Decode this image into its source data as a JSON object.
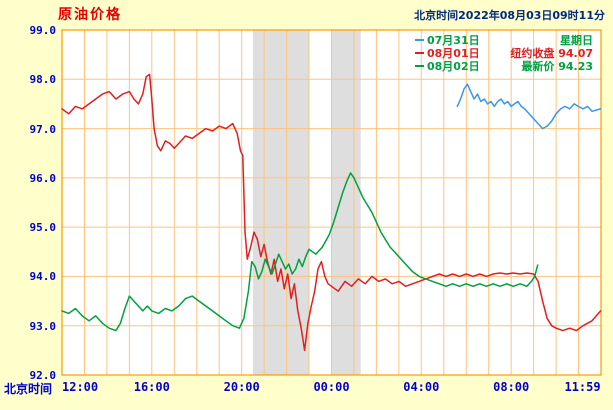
{
  "page": {
    "title": "原油价格",
    "timestamp": "北京时间2022年08月03日09时11分",
    "x_axis_caption": "北京时间"
  },
  "colors": {
    "background": "#FFFFCC",
    "plot_bg": "#FFFFFF",
    "grid": "#FFC37E",
    "border": "#FF9900",
    "band": "#DEDEDE",
    "axis_text": "#0000CC",
    "title_text": "#E60000",
    "timestamp_text": "#002A80",
    "line_blue": "#3A97E8",
    "line_red": "#E02020",
    "line_green": "#00A040"
  },
  "legend": {
    "rows": [
      {
        "date": "07月31日",
        "note": "星期日",
        "line_color": "#3A97E8",
        "date_color": "#00A040",
        "note_color": "#00A040"
      },
      {
        "date": "08月01日",
        "note": "纽约收盘 94.07",
        "line_color": "#E02020",
        "date_color": "#E02020",
        "note_color": "#E02020"
      },
      {
        "date": "08月02日",
        "note": "最新价 94.23",
        "line_color": "#00A040",
        "date_color": "#00A040",
        "note_color": "#00A040"
      }
    ]
  },
  "chart_data": {
    "type": "line",
    "title": "原油价格",
    "xlabel": "北京时间",
    "ylabel": "",
    "ylim": [
      92.0,
      99.0
    ],
    "x_hours_span": 24,
    "grid": true,
    "legend_position": "top-right",
    "y_ticks": [
      {
        "label": "99.0",
        "value": 99.0
      },
      {
        "label": "98.0",
        "value": 98.0
      },
      {
        "label": "97.0",
        "value": 97.0
      },
      {
        "label": "96.0",
        "value": 96.0
      },
      {
        "label": "95.0",
        "value": 95.0
      },
      {
        "label": "94.0",
        "value": 94.0
      },
      {
        "label": "93.0",
        "value": 93.0
      },
      {
        "label": "92.0",
        "value": 92.0
      }
    ],
    "x_ticks": [
      {
        "label": "12:00",
        "t": 0,
        "align": "left"
      },
      {
        "label": "16:00",
        "t": 4,
        "align": "center"
      },
      {
        "label": "20:00",
        "t": 8,
        "align": "center"
      },
      {
        "label": "00:00",
        "t": 12,
        "align": "center"
      },
      {
        "label": "04:00",
        "t": 16,
        "align": "center"
      },
      {
        "label": "08:00",
        "t": 20,
        "align": "center"
      },
      {
        "label": "11:59",
        "t": 23.98,
        "align": "right"
      }
    ],
    "shaded_bands": [
      {
        "t0": 8.5,
        "t1": 11.0
      },
      {
        "t0": 12.0,
        "t1": 13.3
      }
    ],
    "series": [
      {
        "name": "07月31日",
        "color": "#3A97E8",
        "points": [
          [
            17.6,
            97.45
          ],
          [
            17.75,
            97.6
          ],
          [
            17.9,
            97.8
          ],
          [
            18.05,
            97.9
          ],
          [
            18.2,
            97.75
          ],
          [
            18.35,
            97.6
          ],
          [
            18.5,
            97.7
          ],
          [
            18.65,
            97.55
          ],
          [
            18.8,
            97.6
          ],
          [
            18.95,
            97.5
          ],
          [
            19.1,
            97.55
          ],
          [
            19.25,
            97.45
          ],
          [
            19.4,
            97.55
          ],
          [
            19.55,
            97.6
          ],
          [
            19.7,
            97.5
          ],
          [
            19.85,
            97.55
          ],
          [
            20.0,
            97.45
          ],
          [
            20.15,
            97.5
          ],
          [
            20.3,
            97.55
          ],
          [
            20.45,
            97.45
          ],
          [
            20.6,
            97.4
          ],
          [
            20.8,
            97.3
          ],
          [
            21.0,
            97.2
          ],
          [
            21.2,
            97.1
          ],
          [
            21.4,
            97.0
          ],
          [
            21.6,
            97.05
          ],
          [
            21.8,
            97.15
          ],
          [
            22.0,
            97.3
          ],
          [
            22.2,
            97.4
          ],
          [
            22.4,
            97.45
          ],
          [
            22.6,
            97.4
          ],
          [
            22.8,
            97.5
          ],
          [
            23.0,
            97.45
          ],
          [
            23.2,
            97.4
          ],
          [
            23.4,
            97.45
          ],
          [
            23.6,
            97.35
          ],
          [
            23.98,
            97.4
          ]
        ]
      },
      {
        "name": "08月01日",
        "color": "#E02020",
        "points": [
          [
            0,
            97.4
          ],
          [
            0.3,
            97.3
          ],
          [
            0.6,
            97.45
          ],
          [
            0.9,
            97.4
          ],
          [
            1.2,
            97.5
          ],
          [
            1.5,
            97.6
          ],
          [
            1.8,
            97.7
          ],
          [
            2.1,
            97.75
          ],
          [
            2.4,
            97.6
          ],
          [
            2.7,
            97.7
          ],
          [
            3.0,
            97.75
          ],
          [
            3.2,
            97.6
          ],
          [
            3.4,
            97.5
          ],
          [
            3.6,
            97.7
          ],
          [
            3.75,
            98.05
          ],
          [
            3.9,
            98.1
          ],
          [
            4.0,
            97.6
          ],
          [
            4.1,
            97.0
          ],
          [
            4.25,
            96.65
          ],
          [
            4.4,
            96.55
          ],
          [
            4.6,
            96.75
          ],
          [
            4.8,
            96.7
          ],
          [
            5.0,
            96.6
          ],
          [
            5.2,
            96.7
          ],
          [
            5.5,
            96.85
          ],
          [
            5.8,
            96.8
          ],
          [
            6.1,
            96.9
          ],
          [
            6.4,
            97.0
          ],
          [
            6.7,
            96.95
          ],
          [
            7.0,
            97.05
          ],
          [
            7.3,
            97.0
          ],
          [
            7.6,
            97.1
          ],
          [
            7.8,
            96.9
          ],
          [
            7.95,
            96.55
          ],
          [
            8.05,
            96.45
          ],
          [
            8.15,
            94.9
          ],
          [
            8.25,
            94.35
          ],
          [
            8.4,
            94.6
          ],
          [
            8.55,
            94.9
          ],
          [
            8.7,
            94.75
          ],
          [
            8.85,
            94.4
          ],
          [
            9.0,
            94.65
          ],
          [
            9.15,
            94.3
          ],
          [
            9.3,
            94.05
          ],
          [
            9.45,
            94.35
          ],
          [
            9.6,
            93.9
          ],
          [
            9.75,
            94.15
          ],
          [
            9.9,
            93.75
          ],
          [
            10.05,
            94.05
          ],
          [
            10.2,
            93.55
          ],
          [
            10.35,
            93.85
          ],
          [
            10.5,
            93.3
          ],
          [
            10.65,
            92.95
          ],
          [
            10.8,
            92.5
          ],
          [
            10.95,
            93.05
          ],
          [
            11.1,
            93.4
          ],
          [
            11.25,
            93.7
          ],
          [
            11.4,
            94.15
          ],
          [
            11.55,
            94.3
          ],
          [
            11.7,
            94.0
          ],
          [
            11.85,
            93.85
          ],
          [
            12.0,
            93.8
          ],
          [
            12.3,
            93.7
          ],
          [
            12.6,
            93.9
          ],
          [
            12.9,
            93.8
          ],
          [
            13.2,
            93.95
          ],
          [
            13.5,
            93.85
          ],
          [
            13.8,
            94.0
          ],
          [
            14.1,
            93.9
          ],
          [
            14.4,
            93.95
          ],
          [
            14.7,
            93.85
          ],
          [
            15.0,
            93.9
          ],
          [
            15.3,
            93.8
          ],
          [
            15.6,
            93.85
          ],
          [
            15.9,
            93.9
          ],
          [
            16.2,
            93.95
          ],
          [
            16.5,
            94.0
          ],
          [
            16.8,
            94.05
          ],
          [
            17.1,
            94.0
          ],
          [
            17.4,
            94.05
          ],
          [
            17.7,
            94.0
          ],
          [
            18.0,
            94.05
          ],
          [
            18.3,
            94.0
          ],
          [
            18.6,
            94.05
          ],
          [
            18.9,
            94.0
          ],
          [
            19.2,
            94.05
          ],
          [
            19.5,
            94.07
          ],
          [
            19.8,
            94.05
          ],
          [
            20.1,
            94.07
          ],
          [
            20.4,
            94.05
          ],
          [
            20.7,
            94.07
          ],
          [
            21.0,
            94.05
          ],
          [
            21.2,
            93.9
          ],
          [
            21.4,
            93.5
          ],
          [
            21.6,
            93.15
          ],
          [
            21.8,
            93.0
          ],
          [
            22.0,
            92.95
          ],
          [
            22.3,
            92.9
          ],
          [
            22.6,
            92.95
          ],
          [
            22.9,
            92.9
          ],
          [
            23.2,
            93.0
          ],
          [
            23.6,
            93.1
          ],
          [
            23.98,
            93.3
          ]
        ]
      },
      {
        "name": "08月02日",
        "color": "#00A040",
        "points": [
          [
            0,
            93.3
          ],
          [
            0.3,
            93.25
          ],
          [
            0.6,
            93.35
          ],
          [
            0.9,
            93.2
          ],
          [
            1.2,
            93.1
          ],
          [
            1.5,
            93.2
          ],
          [
            1.8,
            93.05
          ],
          [
            2.1,
            92.95
          ],
          [
            2.4,
            92.9
          ],
          [
            2.6,
            93.05
          ],
          [
            2.8,
            93.35
          ],
          [
            3.0,
            93.6
          ],
          [
            3.2,
            93.5
          ],
          [
            3.4,
            93.4
          ],
          [
            3.6,
            93.3
          ],
          [
            3.8,
            93.4
          ],
          [
            4.0,
            93.3
          ],
          [
            4.3,
            93.25
          ],
          [
            4.6,
            93.35
          ],
          [
            4.9,
            93.3
          ],
          [
            5.2,
            93.4
          ],
          [
            5.5,
            93.55
          ],
          [
            5.8,
            93.6
          ],
          [
            6.1,
            93.5
          ],
          [
            6.4,
            93.4
          ],
          [
            6.7,
            93.3
          ],
          [
            7.0,
            93.2
          ],
          [
            7.3,
            93.1
          ],
          [
            7.6,
            93.0
          ],
          [
            7.9,
            92.95
          ],
          [
            8.1,
            93.15
          ],
          [
            8.3,
            93.7
          ],
          [
            8.45,
            94.3
          ],
          [
            8.6,
            94.2
          ],
          [
            8.75,
            93.95
          ],
          [
            8.9,
            94.1
          ],
          [
            9.05,
            94.35
          ],
          [
            9.2,
            94.2
          ],
          [
            9.35,
            94.05
          ],
          [
            9.5,
            94.25
          ],
          [
            9.65,
            94.45
          ],
          [
            9.8,
            94.3
          ],
          [
            9.95,
            94.15
          ],
          [
            10.1,
            94.25
          ],
          [
            10.25,
            94.05
          ],
          [
            10.4,
            94.15
          ],
          [
            10.55,
            94.35
          ],
          [
            10.7,
            94.2
          ],
          [
            10.85,
            94.4
          ],
          [
            11.0,
            94.55
          ],
          [
            11.3,
            94.45
          ],
          [
            11.6,
            94.6
          ],
          [
            11.9,
            94.85
          ],
          [
            12.1,
            95.1
          ],
          [
            12.3,
            95.4
          ],
          [
            12.5,
            95.7
          ],
          [
            12.7,
            95.95
          ],
          [
            12.85,
            96.1
          ],
          [
            13.0,
            96.0
          ],
          [
            13.2,
            95.8
          ],
          [
            13.4,
            95.6
          ],
          [
            13.6,
            95.45
          ],
          [
            13.8,
            95.3
          ],
          [
            14.0,
            95.1
          ],
          [
            14.2,
            94.9
          ],
          [
            14.4,
            94.75
          ],
          [
            14.6,
            94.6
          ],
          [
            14.8,
            94.5
          ],
          [
            15.0,
            94.4
          ],
          [
            15.3,
            94.25
          ],
          [
            15.6,
            94.1
          ],
          [
            15.9,
            94.0
          ],
          [
            16.2,
            93.95
          ],
          [
            16.5,
            93.9
          ],
          [
            16.8,
            93.85
          ],
          [
            17.1,
            93.8
          ],
          [
            17.4,
            93.85
          ],
          [
            17.7,
            93.8
          ],
          [
            18.0,
            93.85
          ],
          [
            18.3,
            93.8
          ],
          [
            18.6,
            93.85
          ],
          [
            18.9,
            93.8
          ],
          [
            19.2,
            93.85
          ],
          [
            19.5,
            93.8
          ],
          [
            19.8,
            93.85
          ],
          [
            20.1,
            93.8
          ],
          [
            20.4,
            93.85
          ],
          [
            20.7,
            93.8
          ],
          [
            20.9,
            93.9
          ],
          [
            21.05,
            94.0
          ],
          [
            21.18,
            94.23
          ]
        ]
      }
    ]
  }
}
